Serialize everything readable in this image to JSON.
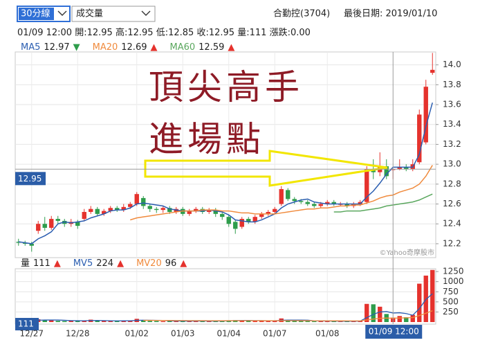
{
  "ui": {
    "period": "30分線",
    "indicator": "成交量",
    "stock": "合勤控(3704)",
    "last_date": "最後日期: 2019/01/10"
  },
  "chart_data": {
    "type": "candlestick",
    "categories": [
      null,
      null,
      "12/27",
      null,
      null,
      null,
      null,
      null,
      null,
      "12/28",
      null,
      null,
      null,
      null,
      null,
      null,
      null,
      null,
      "01/02",
      null,
      null,
      null,
      null,
      null,
      null,
      "01/03",
      null,
      null,
      null,
      null,
      null,
      null,
      "01/04",
      null,
      null,
      null,
      null,
      null,
      null,
      "01/07",
      null,
      null,
      null,
      null,
      null,
      null,
      null,
      "01/08",
      null,
      null,
      null,
      null,
      null,
      null,
      null,
      null,
      null,
      null,
      null,
      null,
      null,
      null,
      null,
      null
    ],
    "open": [
      12.22,
      12.21,
      12.2,
      12.33,
      12.4,
      12.36,
      12.45,
      12.43,
      12.4,
      12.42,
      12.45,
      12.52,
      12.55,
      12.5,
      12.53,
      12.56,
      12.54,
      12.57,
      12.6,
      12.66,
      12.58,
      12.55,
      12.54,
      12.56,
      12.52,
      12.55,
      12.5,
      12.53,
      12.55,
      12.52,
      12.54,
      12.5,
      12.47,
      12.42,
      12.37,
      12.45,
      12.42,
      12.47,
      12.5,
      12.52,
      12.6,
      12.74,
      12.65,
      12.63,
      12.62,
      12.6,
      12.58,
      12.6,
      12.62,
      12.6,
      12.6,
      12.58,
      12.6,
      12.62,
      12.95,
      12.92,
      12.98,
      12.95,
      12.95,
      12.97,
      12.95,
      13.02,
      13.22,
      13.92
    ],
    "high": [
      12.25,
      12.23,
      12.22,
      12.43,
      12.47,
      12.48,
      12.48,
      12.45,
      12.45,
      12.44,
      12.55,
      12.58,
      12.57,
      12.55,
      12.58,
      12.58,
      12.6,
      12.62,
      12.72,
      12.68,
      12.6,
      12.57,
      12.58,
      12.58,
      12.57,
      12.57,
      12.55,
      12.57,
      12.57,
      12.56,
      12.56,
      12.52,
      12.49,
      12.44,
      12.47,
      12.47,
      12.49,
      12.52,
      12.54,
      12.57,
      12.78,
      12.76,
      12.67,
      12.65,
      12.64,
      12.62,
      12.62,
      12.64,
      12.64,
      12.62,
      12.62,
      12.62,
      12.64,
      12.98,
      13.05,
      13.12,
      13.05,
      12.95,
      13.05,
      13.0,
      13.05,
      13.55,
      13.85,
      14.12
    ],
    "low": [
      12.18,
      12.18,
      12.12,
      12.3,
      12.33,
      12.34,
      12.4,
      12.37,
      12.37,
      12.35,
      12.43,
      12.5,
      12.48,
      12.48,
      12.51,
      12.52,
      12.52,
      12.55,
      12.58,
      12.55,
      12.52,
      12.51,
      12.51,
      12.5,
      12.5,
      12.48,
      12.48,
      12.51,
      12.5,
      12.5,
      12.47,
      12.44,
      12.37,
      12.3,
      12.35,
      12.4,
      12.4,
      12.45,
      12.48,
      12.5,
      12.58,
      12.63,
      12.6,
      12.6,
      12.58,
      12.56,
      12.56,
      12.58,
      12.58,
      12.58,
      12.56,
      12.56,
      12.58,
      12.6,
      12.85,
      12.88,
      12.85,
      12.85,
      12.94,
      12.93,
      12.93,
      13.0,
      13.2,
      13.9
    ],
    "close": [
      12.21,
      12.2,
      12.18,
      12.4,
      12.36,
      12.45,
      12.43,
      12.4,
      12.42,
      12.38,
      12.52,
      12.55,
      12.5,
      12.53,
      12.56,
      12.54,
      12.57,
      12.6,
      12.7,
      12.58,
      12.55,
      12.54,
      12.56,
      12.52,
      12.55,
      12.5,
      12.53,
      12.55,
      12.52,
      12.54,
      12.5,
      12.47,
      12.4,
      12.35,
      12.45,
      12.42,
      12.47,
      12.5,
      12.52,
      12.55,
      12.75,
      12.65,
      12.63,
      12.62,
      12.6,
      12.58,
      12.6,
      12.62,
      12.6,
      12.6,
      12.58,
      12.6,
      12.62,
      12.95,
      12.92,
      12.98,
      12.88,
      12.95,
      12.97,
      12.95,
      13.0,
      13.5,
      13.78,
      13.95
    ],
    "up_color": "#e5322d",
    "down_color": "#2e9d4c",
    "info": {
      "time": "01/09 12:00",
      "labels": {
        "open": "開:",
        "high": "高:",
        "low": "低:",
        "close": "收:",
        "volume": "量:",
        "change": "漲跌:"
      },
      "change": "0.00"
    },
    "lines": [
      {
        "name": "MA5",
        "color": "#2a5db0",
        "trend": "▼",
        "values": [
          12.22,
          12.21,
          12.2,
          12.25,
          12.28,
          12.32,
          12.4,
          12.42,
          12.41,
          12.42,
          12.43,
          12.46,
          12.48,
          12.5,
          12.53,
          12.54,
          12.54,
          12.56,
          12.6,
          12.61,
          12.6,
          12.59,
          12.58,
          12.55,
          12.54,
          12.53,
          12.53,
          12.53,
          12.53,
          12.54,
          12.53,
          12.52,
          12.49,
          12.44,
          12.43,
          12.42,
          12.42,
          12.44,
          12.47,
          12.5,
          12.56,
          12.6,
          12.62,
          12.64,
          12.65,
          12.62,
          12.61,
          12.6,
          12.6,
          12.6,
          12.6,
          12.6,
          12.6,
          12.67,
          12.73,
          12.81,
          12.9,
          12.97,
          12.97,
          12.97,
          12.97,
          13.1,
          13.38,
          13.62
        ]
      },
      {
        "name": "MA20",
        "color": "#f08a3c",
        "trend": "▲",
        "values": [
          null,
          null,
          null,
          null,
          null,
          null,
          null,
          null,
          null,
          null,
          null,
          null,
          null,
          null,
          null,
          null,
          null,
          12.44,
          12.46,
          12.47,
          12.48,
          12.49,
          12.5,
          12.51,
          12.52,
          12.53,
          12.53,
          12.53,
          12.54,
          12.54,
          12.54,
          12.53,
          12.53,
          12.52,
          12.51,
          12.51,
          12.5,
          12.5,
          12.5,
          12.5,
          12.51,
          12.52,
          12.53,
          12.54,
          12.55,
          12.55,
          12.56,
          12.56,
          12.57,
          12.58,
          12.58,
          12.59,
          12.59,
          12.61,
          12.63,
          12.66,
          12.68,
          12.69,
          12.72,
          12.74,
          12.76,
          12.8,
          12.88,
          12.99
        ]
      },
      {
        "name": "MA60",
        "color": "#5aa75e",
        "trend": "▲",
        "values": [
          null,
          null,
          null,
          null,
          null,
          null,
          null,
          null,
          null,
          null,
          null,
          null,
          null,
          null,
          null,
          null,
          null,
          null,
          null,
          null,
          null,
          null,
          null,
          null,
          null,
          null,
          null,
          null,
          null,
          null,
          null,
          null,
          null,
          null,
          null,
          null,
          null,
          null,
          null,
          null,
          null,
          null,
          null,
          null,
          null,
          null,
          null,
          null,
          12.52,
          12.52,
          12.53,
          12.53,
          12.53,
          12.54,
          12.55,
          12.56,
          12.58,
          12.59,
          12.6,
          12.61,
          12.62,
          12.64,
          12.67,
          12.7
        ]
      }
    ],
    "ylim": [
      12.06,
      14.13
    ],
    "yticks": [
      12.2,
      12.4,
      12.6,
      12.8,
      {
        "value": 13,
        "label": "13.0"
      },
      13.2,
      13.4,
      13.6,
      13.8,
      {
        "value": 14,
        "label": "14.0"
      }
    ],
    "grid": true,
    "watermark": "©Yahoo奇摩股市",
    "annotations": [
      "頂尖高手",
      "進場點"
    ],
    "volume": {
      "label": "量",
      "trend": "▲",
      "values": [
        40,
        30,
        60,
        70,
        50,
        45,
        30,
        25,
        35,
        30,
        40,
        60,
        35,
        30,
        25,
        30,
        35,
        40,
        80,
        45,
        30,
        25,
        20,
        30,
        25,
        30,
        20,
        25,
        30,
        20,
        25,
        35,
        45,
        50,
        40,
        30,
        25,
        30,
        35,
        40,
        90,
        50,
        35,
        30,
        25,
        20,
        25,
        30,
        20,
        15,
        20,
        25,
        30,
        450,
        440,
        380,
        200,
        111,
        150,
        120,
        180,
        950,
        1150,
        1290
      ],
      "lines": [
        {
          "name": "MV5",
          "color": "#2a5db0",
          "trend": "▲",
          "values": [
            40,
            38,
            40,
            45,
            50,
            50,
            50,
            44,
            37,
            33,
            32,
            38,
            40,
            36,
            32,
            30,
            31,
            32,
            42,
            47,
            45,
            43,
            40,
            30,
            26,
            27,
            25,
            26,
            28,
            25,
            24,
            27,
            31,
            37,
            40,
            40,
            37,
            36,
            32,
            32,
            44,
            49,
            48,
            49,
            46,
            32,
            27,
            27,
            24,
            22,
            20,
            22,
            24,
            110,
            190,
            250,
            260,
            224,
            230,
            210,
            170,
            330,
            560,
            700
          ]
        },
        {
          "name": "MV20",
          "color": "#f08a3c",
          "trend": "▲",
          "values": [
            null,
            null,
            null,
            null,
            null,
            null,
            null,
            null,
            null,
            null,
            null,
            null,
            null,
            null,
            null,
            null,
            null,
            null,
            null,
            42,
            42,
            41,
            40,
            40,
            39,
            38,
            37,
            36,
            35,
            34,
            33,
            33,
            33,
            33,
            34,
            34,
            34,
            33,
            33,
            34,
            34,
            34,
            34,
            33,
            33,
            32,
            32,
            32,
            31,
            31,
            30,
            30,
            30,
            52,
            74,
            92,
            100,
            96,
            100,
            105,
            112,
            160,
            218,
            280
          ]
        }
      ],
      "ylim": [
        0,
        1320
      ],
      "yticks": [
        250,
        500,
        750,
        1000,
        1250
      ]
    }
  }
}
